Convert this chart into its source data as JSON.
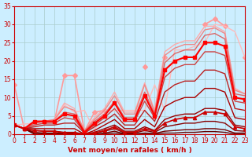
{
  "background_color": "#cceeff",
  "grid_color": "#aacccc",
  "xlabel": "Vent moyen/en rafales ( km/h )",
  "xlabel_color": "#cc0000",
  "tick_color": "#cc0000",
  "xlim": [
    0,
    23
  ],
  "ylim": [
    0,
    35
  ],
  "yticks": [
    0,
    5,
    10,
    15,
    20,
    25,
    30,
    35
  ],
  "xticks": [
    0,
    1,
    2,
    3,
    4,
    5,
    6,
    7,
    8,
    9,
    10,
    11,
    12,
    13,
    14,
    15,
    16,
    17,
    18,
    19,
    20,
    21,
    22,
    23
  ],
  "lines": [
    {
      "x": [
        0,
        1,
        2,
        3,
        4,
        5,
        6,
        7,
        8,
        9,
        10,
        11,
        12,
        13,
        14,
        15,
        16,
        17,
        18,
        19,
        20,
        21,
        22,
        23
      ],
      "y": [
        13.5,
        1.5,
        null,
        3.5,
        3.5,
        16,
        16,
        0.8,
        6,
        6.5,
        null,
        null,
        null,
        18.5,
        null,
        21,
        null,
        null,
        null,
        30,
        31.5,
        29.5,
        null,
        21
      ],
      "color": "#ff9999",
      "lw": 1.2,
      "marker": "D",
      "ms": 3
    },
    {
      "x": [
        0,
        1,
        2,
        3,
        4,
        5,
        6,
        7,
        8,
        9,
        10,
        11,
        12,
        13,
        14,
        15,
        16,
        17,
        18,
        19,
        20,
        21,
        22,
        23
      ],
      "y": [
        null,
        null,
        null,
        null,
        null,
        null,
        null,
        null,
        null,
        null,
        null,
        null,
        null,
        null,
        null,
        null,
        null,
        null,
        null,
        null,
        null,
        null,
        null,
        null
      ],
      "color": "#ffaaaa",
      "lw": 1.0,
      "marker": null,
      "ms": 0
    },
    {
      "x": [
        0,
        2,
        3,
        4,
        5,
        6,
        7,
        8,
        9,
        10,
        11,
        12,
        13,
        14,
        15,
        16,
        17,
        18,
        19,
        20,
        21,
        22,
        23
      ],
      "y": [
        2.5,
        3.0,
        3.5,
        3.5,
        8.0,
        6.0,
        6.5,
        1.0,
        6.5,
        6.5,
        6.5,
        6.5,
        6.5,
        13.5,
        6.5,
        23,
        23,
        24,
        25,
        30,
        29.5,
        28,
        21
      ],
      "color": "#ffbbbb",
      "lw": 1.0,
      "marker": null,
      "ms": 0
    },
    {
      "x": [
        0,
        1,
        2,
        3,
        4,
        5,
        6,
        7,
        8,
        9,
        10,
        11,
        12,
        13,
        14,
        15,
        16,
        17,
        18,
        19,
        20,
        21,
        22,
        23
      ],
      "y": [
        2.5,
        1.5,
        3.5,
        3.5,
        4.0,
        8.5,
        7.0,
        1.0,
        4.5,
        7.0,
        11.5,
        6.0,
        6.0,
        14.0,
        6.5,
        22.5,
        24.5,
        25.5,
        25.5,
        29.5,
        29.5,
        28.0,
        12.5,
        11.0
      ],
      "color": "#ffaaaa",
      "lw": 1.0,
      "marker": null,
      "ms": 0
    },
    {
      "x": [
        0,
        1,
        2,
        3,
        4,
        5,
        6,
        7,
        8,
        9,
        10,
        11,
        12,
        13,
        14,
        15,
        16,
        17,
        18,
        19,
        20,
        21,
        22,
        23
      ],
      "y": [
        2.5,
        1.5,
        3.0,
        3.5,
        4.0,
        7.5,
        6.5,
        1.0,
        4.0,
        6.5,
        10.5,
        5.5,
        5.5,
        13.5,
        6.0,
        21.5,
        23.5,
        24.5,
        24.5,
        28.5,
        29.0,
        27.5,
        12.0,
        11.0
      ],
      "color": "#ee8888",
      "lw": 1.0,
      "marker": null,
      "ms": 0
    },
    {
      "x": [
        0,
        1,
        2,
        3,
        4,
        5,
        6,
        7,
        8,
        9,
        10,
        11,
        12,
        13,
        14,
        15,
        16,
        17,
        18,
        19,
        20,
        21,
        22,
        23
      ],
      "y": [
        2.5,
        1.5,
        3.0,
        3.5,
        3.5,
        6.0,
        5.5,
        0.8,
        3.5,
        5.5,
        9.0,
        4.5,
        4.5,
        11.5,
        5.5,
        19.5,
        22.0,
        23.0,
        23.0,
        27.0,
        27.5,
        26.0,
        11.0,
        10.5
      ],
      "color": "#dd6666",
      "lw": 1.0,
      "marker": null,
      "ms": 0
    },
    {
      "x": [
        0,
        1,
        2,
        3,
        4,
        5,
        6,
        7,
        8,
        9,
        10,
        11,
        12,
        13,
        14,
        15,
        16,
        17,
        18,
        19,
        20,
        21,
        22,
        23
      ],
      "y": [
        2.5,
        1.5,
        2.5,
        3.0,
        3.0,
        4.5,
        4.0,
        0.5,
        2.5,
        4.5,
        7.0,
        3.5,
        3.5,
        9.0,
        4.5,
        15.5,
        18.0,
        19.0,
        19.0,
        22.5,
        22.5,
        21.5,
        9.0,
        8.5
      ],
      "color": "#cc4444",
      "lw": 1.0,
      "marker": null,
      "ms": 0
    },
    {
      "x": [
        0,
        1,
        2,
        3,
        4,
        5,
        6,
        7,
        8,
        9,
        10,
        11,
        12,
        13,
        14,
        15,
        16,
        17,
        18,
        19,
        20,
        21,
        22,
        23
      ],
      "y": [
        2.5,
        1.5,
        2.0,
        2.5,
        2.5,
        3.0,
        3.0,
        0.3,
        2.0,
        3.5,
        5.5,
        2.5,
        2.5,
        6.5,
        3.5,
        11.5,
        13.5,
        14.5,
        14.5,
        17.5,
        17.5,
        16.5,
        7.0,
        6.5
      ],
      "color": "#bb2222",
      "lw": 1.0,
      "marker": null,
      "ms": 0
    },
    {
      "x": [
        0,
        1,
        2,
        3,
        4,
        5,
        6,
        7,
        8,
        9,
        10,
        11,
        12,
        13,
        14,
        15,
        16,
        17,
        18,
        19,
        20,
        21,
        22,
        23
      ],
      "y": [
        2.5,
        1.5,
        1.5,
        1.5,
        1.5,
        1.5,
        1.5,
        0.0,
        1.0,
        2.5,
        4.0,
        1.5,
        1.5,
        4.0,
        2.0,
        7.5,
        9.0,
        10.0,
        10.0,
        12.5,
        12.5,
        11.5,
        4.5,
        4.0
      ],
      "color": "#aa0000",
      "lw": 1.0,
      "marker": null,
      "ms": 0
    },
    {
      "x": [
        0,
        1,
        2,
        3,
        4,
        5,
        6,
        7,
        8,
        9,
        10,
        11,
        12,
        13,
        14,
        15,
        16,
        17,
        18,
        19,
        20,
        21,
        22,
        23
      ],
      "y": [
        2.5,
        1.5,
        1.0,
        0.8,
        0.8,
        0.5,
        0.5,
        0.0,
        0.5,
        1.5,
        2.5,
        0.8,
        0.8,
        2.0,
        1.0,
        4.0,
        5.0,
        5.5,
        5.5,
        7.0,
        7.0,
        6.5,
        2.5,
        2.0
      ],
      "color": "#990000",
      "lw": 1.0,
      "marker": null,
      "ms": 0
    },
    {
      "x": [
        0,
        1,
        2,
        3,
        4,
        5,
        6,
        7,
        8,
        9,
        10,
        11,
        12,
        13,
        14,
        15,
        16,
        17,
        18,
        19,
        20,
        21,
        22,
        23
      ],
      "y": [
        2.5,
        1.5,
        0.5,
        0.3,
        0.3,
        0.2,
        0.2,
        0.0,
        0.2,
        0.8,
        1.5,
        0.3,
        0.3,
        1.0,
        0.5,
        2.0,
        2.5,
        3.0,
        3.0,
        3.5,
        3.5,
        3.0,
        1.0,
        0.8
      ],
      "color": "#880000",
      "lw": 1.0,
      "marker": null,
      "ms": 0
    },
    {
      "x": [
        0,
        1,
        2,
        3,
        4,
        5,
        6,
        7,
        8,
        9,
        10,
        11,
        12,
        13,
        14,
        15,
        16,
        17,
        18,
        19,
        20,
        21,
        22,
        23
      ],
      "y": [
        2.5,
        1.5,
        0.2,
        0.1,
        0.1,
        0.0,
        0.0,
        0.0,
        0.0,
        0.3,
        0.8,
        0.1,
        0.1,
        0.3,
        0.2,
        0.8,
        1.0,
        1.2,
        1.2,
        1.5,
        1.5,
        1.2,
        0.3,
        0.3
      ],
      "color": "#770000",
      "lw": 1.0,
      "marker": null,
      "ms": 0
    },
    {
      "x": [
        0,
        1,
        2,
        3,
        4,
        5,
        6,
        7,
        8,
        9,
        10,
        11,
        12,
        13,
        14,
        15,
        16,
        17,
        18,
        19,
        20,
        21,
        22,
        23
      ],
      "y": [
        2.5,
        1.5,
        0.0,
        0.0,
        0.0,
        0.0,
        0.0,
        0.0,
        0.0,
        0.0,
        0.3,
        0.0,
        0.0,
        0.0,
        0.0,
        0.3,
        0.3,
        0.5,
        0.5,
        0.7,
        0.7,
        0.5,
        0.0,
        0.0
      ],
      "color": "#660000",
      "lw": 1.0,
      "marker": null,
      "ms": 0
    },
    {
      "x": [
        0,
        1,
        2,
        3,
        4,
        5,
        6,
        7,
        8,
        9,
        10,
        11,
        12,
        13,
        14,
        15,
        16,
        17,
        18,
        19,
        20,
        21,
        22,
        23
      ],
      "y": [
        2.5,
        1.5,
        3.5,
        3.5,
        3.5,
        5.5,
        5.0,
        0.5,
        3.0,
        5.0,
        8.5,
        4.0,
        4.0,
        10.5,
        5.0,
        17.5,
        20.0,
        21.0,
        21.0,
        25.0,
        25.0,
        24.0,
        10.0,
        9.5
      ],
      "color": "#ff0000",
      "lw": 1.5,
      "marker": "s",
      "ms": 3
    },
    {
      "x": [
        0,
        1,
        2,
        3,
        4,
        5,
        6,
        7,
        8,
        9,
        10,
        11,
        12,
        13,
        14,
        15,
        16,
        17,
        18,
        19,
        20,
        21,
        22,
        23
      ],
      "y": [
        2.5,
        1.5,
        1.0,
        0.8,
        0.8,
        0.3,
        0.3,
        0.0,
        0.3,
        1.0,
        2.0,
        0.5,
        0.5,
        1.5,
        0.8,
        3.0,
        4.0,
        4.5,
        4.5,
        6.0,
        6.0,
        5.5,
        2.0,
        1.5
      ],
      "color": "#cc0000",
      "lw": 1.2,
      "marker": "^",
      "ms": 3
    }
  ]
}
